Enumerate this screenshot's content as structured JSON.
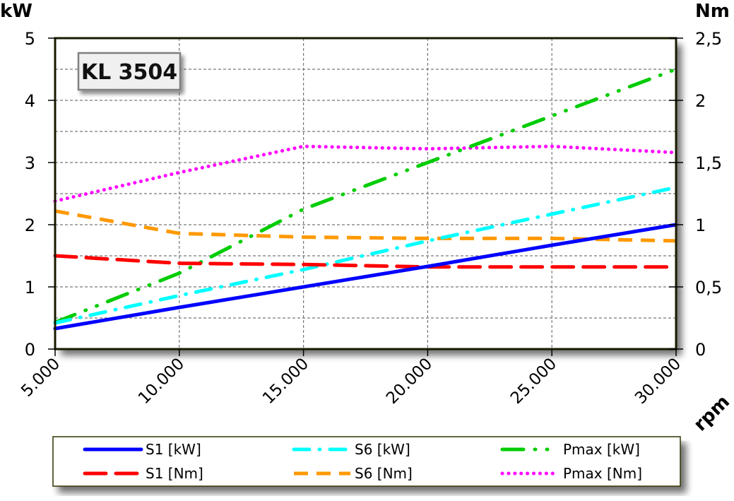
{
  "chart_data": {
    "type": "line",
    "title": "KL 3504",
    "xlabel": "rpm",
    "ylabel_left": "kW",
    "ylabel_right": "Nm",
    "x": [
      5000,
      10000,
      15000,
      20000,
      25000,
      30000
    ],
    "x_tick_labels": [
      "5.000",
      "10.000",
      "15.000",
      "20.000",
      "25.000",
      "30.000"
    ],
    "xlim": [
      5000,
      30000
    ],
    "ylim_left": [
      0,
      5
    ],
    "ylim_right": [
      0,
      2.5
    ],
    "y_left_ticks": [
      "0",
      "1",
      "2",
      "3",
      "4",
      "5"
    ],
    "y_right_ticks": [
      "0",
      "0,5",
      "1",
      "1,5",
      "2",
      "2,5"
    ],
    "grid": true,
    "legend_position": "bottom",
    "series": [
      {
        "name": "S1 [kW]",
        "axis": "left",
        "color": "#0000ff",
        "style": "solid",
        "values": [
          0.33,
          0.67,
          1.0,
          1.33,
          1.67,
          2.0
        ]
      },
      {
        "name": "S1 [Nm]",
        "axis": "right",
        "color": "#ff0000",
        "style": "dashed",
        "values": [
          0.75,
          0.69,
          0.68,
          0.66,
          0.66,
          0.66
        ]
      },
      {
        "name": "S6 [kW]",
        "axis": "left",
        "color": "#00ffff",
        "style": "dash-dot",
        "values": [
          0.42,
          0.86,
          1.28,
          1.74,
          2.17,
          2.6
        ]
      },
      {
        "name": "S6 [Nm]",
        "axis": "right",
        "color": "#ff9900",
        "style": "short-dash",
        "values": [
          1.11,
          0.93,
          0.9,
          0.89,
          0.89,
          0.87
        ]
      },
      {
        "name": "Pmax [kW]",
        "axis": "left",
        "color": "#00cc00",
        "style": "dash-dot-dot",
        "values": [
          0.43,
          1.22,
          2.25,
          3.0,
          3.75,
          4.5
        ]
      },
      {
        "name": "Pmax [Nm]",
        "axis": "right",
        "color": "#ff00ff",
        "style": "dotted",
        "values": [
          1.19,
          1.42,
          1.63,
          1.61,
          1.63,
          1.58
        ]
      }
    ]
  },
  "labels": {
    "title": "KL 3504",
    "unit_left": "kW",
    "unit_right": "Nm",
    "unit_x": "rpm"
  }
}
